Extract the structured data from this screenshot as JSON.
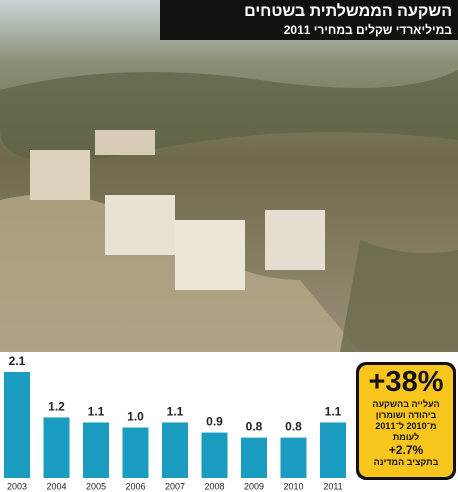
{
  "header": {
    "title": "השקעה הממשלתית בשטחים",
    "subtitle": "במיליארדי שקלים במחירי 2011"
  },
  "chart_data": {
    "type": "bar",
    "categories": [
      "2003",
      "2004",
      "2005",
      "2006",
      "2007",
      "2008",
      "2009",
      "2010",
      "2011"
    ],
    "values": [
      2.1,
      1.2,
      1.1,
      1.0,
      1.1,
      0.9,
      0.8,
      0.8,
      1.1
    ],
    "value_labels": [
      "2.1",
      "1.2",
      "1.1",
      "1.0",
      "1.1",
      "0.9",
      "0.8",
      "0.8",
      "1.1"
    ],
    "color": "#1a9bc0"
  },
  "callout": {
    "headline": "+38%",
    "text": "העלייה בהשקעה ביהודה ושומרון מ־2010 ל־2011",
    "compare": "לעומת",
    "figure": "+2.7%",
    "source": "בתקציב המדינה"
  }
}
